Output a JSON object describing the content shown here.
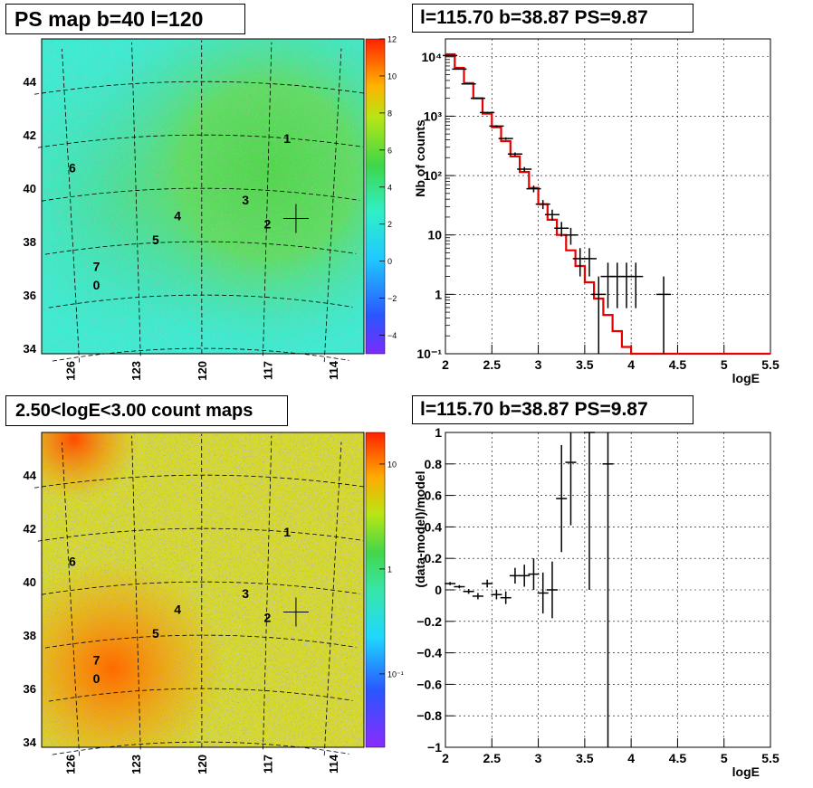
{
  "panels": {
    "map_top": {
      "title": "PS map b=40 l=120"
    },
    "spec_top": {
      "title": "l=115.70 b=38.87 PS=9.87"
    },
    "map_bottom": {
      "title": "2.50<logE<3.00 count maps"
    },
    "spec_bottom": {
      "title": "l=115.70 b=38.87 PS=9.87"
    }
  },
  "chart_data": [
    {
      "type": "heatmap",
      "title": "PS map b=40 l=120",
      "colorbar_ticks": [
        "12",
        "10",
        "8",
        "6",
        "4",
        "2",
        "0",
        "−2",
        "−4"
      ],
      "colorbar_range": [
        -5,
        12
      ],
      "x_ticks": [
        "126",
        "123",
        "120",
        "117",
        "114"
      ],
      "y_ticks": [
        "44",
        "42",
        "40",
        "38",
        "36",
        "34"
      ],
      "sources": [
        {
          "label": "0",
          "l": 124.8,
          "b": 36.2
        },
        {
          "label": "1",
          "l": 116.1,
          "b": 41.7
        },
        {
          "label": "2",
          "l": 117.0,
          "b": 38.5
        },
        {
          "label": "3",
          "l": 118.0,
          "b": 39.4
        },
        {
          "label": "4",
          "l": 121.1,
          "b": 38.8
        },
        {
          "label": "5",
          "l": 122.1,
          "b": 37.9
        },
        {
          "label": "6",
          "l": 125.9,
          "b": 40.6
        },
        {
          "label": "7",
          "l": 124.8,
          "b": 36.9
        }
      ],
      "marker": {
        "l": 115.7,
        "b": 38.87
      }
    },
    {
      "type": "line",
      "title": "l=115.70 b=38.87 PS=9.87",
      "xlabel": "logE",
      "ylabel": "Nb of counts",
      "log_y": true,
      "xlim": [
        2,
        5.5
      ],
      "ylim": [
        0.1,
        20000
      ],
      "x_ticks": [
        "2",
        "2.5",
        "3",
        "3.5",
        "4",
        "4.5",
        "5",
        "5.5"
      ],
      "y_ticks": [
        "10⁴",
        "10³",
        "10²",
        "10",
        "1",
        "10⁻¹"
      ],
      "data_points": [
        {
          "x": 2.05,
          "y": 10500
        },
        {
          "x": 2.15,
          "y": 6200
        },
        {
          "x": 2.25,
          "y": 3500
        },
        {
          "x": 2.35,
          "y": 2000
        },
        {
          "x": 2.45,
          "y": 1150
        },
        {
          "x": 2.55,
          "y": 680
        },
        {
          "x": 2.65,
          "y": 420
        },
        {
          "x": 2.75,
          "y": 230
        },
        {
          "x": 2.85,
          "y": 128
        },
        {
          "x": 2.95,
          "y": 60
        },
        {
          "x": 3.05,
          "y": 33
        },
        {
          "x": 3.15,
          "y": 22
        },
        {
          "x": 3.25,
          "y": 13
        },
        {
          "x": 3.35,
          "y": 10
        },
        {
          "x": 3.45,
          "y": 4
        },
        {
          "x": 3.55,
          "y": 4
        },
        {
          "x": 3.65,
          "y": 1
        },
        {
          "x": 3.75,
          "y": 2
        },
        {
          "x": 3.85,
          "y": 2
        },
        {
          "x": 3.95,
          "y": 2
        },
        {
          "x": 4.05,
          "y": 2
        },
        {
          "x": 4.35,
          "y": 1
        }
      ],
      "model_steps": [
        {
          "x0": 2.0,
          "x1": 2.1,
          "y": 11000
        },
        {
          "x0": 2.1,
          "x1": 2.2,
          "y": 6500
        },
        {
          "x0": 2.2,
          "x1": 2.3,
          "y": 3600
        },
        {
          "x0": 2.3,
          "x1": 2.4,
          "y": 2000
        },
        {
          "x0": 2.4,
          "x1": 2.5,
          "y": 1100
        },
        {
          "x0": 2.5,
          "x1": 2.6,
          "y": 650
        },
        {
          "x0": 2.6,
          "x1": 2.7,
          "y": 380
        },
        {
          "x0": 2.7,
          "x1": 2.8,
          "y": 210
        },
        {
          "x0": 2.8,
          "x1": 2.9,
          "y": 115
        },
        {
          "x0": 2.9,
          "x1": 3.0,
          "y": 62
        },
        {
          "x0": 3.0,
          "x1": 3.1,
          "y": 33
        },
        {
          "x0": 3.1,
          "x1": 3.2,
          "y": 18
        },
        {
          "x0": 3.2,
          "x1": 3.3,
          "y": 10
        },
        {
          "x0": 3.3,
          "x1": 3.4,
          "y": 5.5
        },
        {
          "x0": 3.4,
          "x1": 3.5,
          "y": 3.0
        },
        {
          "x0": 3.5,
          "x1": 3.6,
          "y": 1.6
        },
        {
          "x0": 3.6,
          "x1": 3.7,
          "y": 0.85
        },
        {
          "x0": 3.7,
          "x1": 3.8,
          "y": 0.45
        },
        {
          "x0": 3.8,
          "x1": 3.9,
          "y": 0.24
        },
        {
          "x0": 3.9,
          "x1": 4.0,
          "y": 0.13
        },
        {
          "x0": 4.0,
          "x1": 5.5,
          "y": 0.1
        }
      ]
    },
    {
      "type": "heatmap",
      "title": "2.50<logE<3.00 count maps",
      "colorbar_ticks": [
        "10",
        "1",
        "10⁻¹"
      ],
      "log_scale": true,
      "x_ticks": [
        "126",
        "123",
        "120",
        "117",
        "114"
      ],
      "y_ticks": [
        "44",
        "42",
        "40",
        "38",
        "36",
        "34"
      ]
    },
    {
      "type": "scatter",
      "title": "l=115.70 b=38.87 PS=9.87",
      "xlabel": "logE",
      "ylabel": "(data-model)/model",
      "xlim": [
        2,
        5.5
      ],
      "ylim": [
        -1,
        1
      ],
      "x_ticks": [
        "2",
        "2.5",
        "3",
        "3.5",
        "4",
        "4.5",
        "5",
        "5.5"
      ],
      "y_ticks": [
        "1",
        "0.8",
        "0.6",
        "0.4",
        "0.2",
        "0",
        "−0.2",
        "−0.4",
        "−0.6",
        "−0.8",
        "−1"
      ],
      "points": [
        {
          "x": 2.05,
          "y": 0.04,
          "err": 0.01
        },
        {
          "x": 2.15,
          "y": 0.02,
          "err": 0.01
        },
        {
          "x": 2.25,
          "y": -0.01,
          "err": 0.015
        },
        {
          "x": 2.35,
          "y": -0.04,
          "err": 0.02
        },
        {
          "x": 2.45,
          "y": 0.04,
          "err": 0.025
        },
        {
          "x": 2.55,
          "y": -0.03,
          "err": 0.03
        },
        {
          "x": 2.65,
          "y": -0.05,
          "err": 0.04
        },
        {
          "x": 2.75,
          "y": 0.09,
          "err": 0.05
        },
        {
          "x": 2.85,
          "y": 0.09,
          "err": 0.07
        },
        {
          "x": 2.95,
          "y": 0.1,
          "err": 0.1
        },
        {
          "x": 3.05,
          "y": -0.02,
          "err": 0.13
        },
        {
          "x": 3.15,
          "y": 0.0,
          "err": 0.18
        },
        {
          "x": 3.25,
          "y": 0.58,
          "err": 0.34
        },
        {
          "x": 3.35,
          "y": 0.81,
          "err": 0.4
        },
        {
          "x": 3.55,
          "y": 1.0,
          "err": 1.0
        },
        {
          "x": 3.75,
          "y": 0.8,
          "err": 1.8
        }
      ]
    }
  ]
}
